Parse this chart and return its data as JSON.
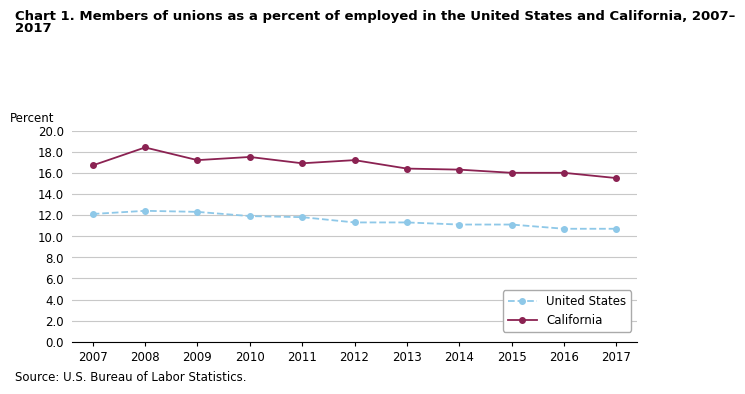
{
  "title_line1": "Chart 1. Members of unions as a percent of employed in the United States and California, 2007–",
  "title_line2": "2017",
  "ylabel": "Percent",
  "source": "Source: U.S. Bureau of Labor Statistics.",
  "years": [
    2007,
    2008,
    2009,
    2010,
    2011,
    2012,
    2013,
    2014,
    2015,
    2016,
    2017
  ],
  "us_values": [
    12.1,
    12.4,
    12.3,
    11.9,
    11.8,
    11.3,
    11.3,
    11.1,
    11.1,
    10.7,
    10.7
  ],
  "ca_values": [
    16.7,
    18.4,
    17.2,
    17.5,
    16.9,
    17.2,
    16.4,
    16.3,
    16.0,
    16.0,
    15.5
  ],
  "us_color": "#8EC8E8",
  "ca_color": "#8B2252",
  "us_label": "United States",
  "ca_label": "California",
  "ylim": [
    0,
    20.0
  ],
  "yticks": [
    0.0,
    2.0,
    4.0,
    6.0,
    8.0,
    10.0,
    12.0,
    14.0,
    16.0,
    18.0,
    20.0
  ],
  "background_color": "#ffffff",
  "grid_color": "#c8c8c8",
  "title_fontsize": 9.5,
  "tick_fontsize": 8.5,
  "legend_fontsize": 8.5,
  "source_fontsize": 8.5,
  "ylabel_fontsize": 8.5
}
